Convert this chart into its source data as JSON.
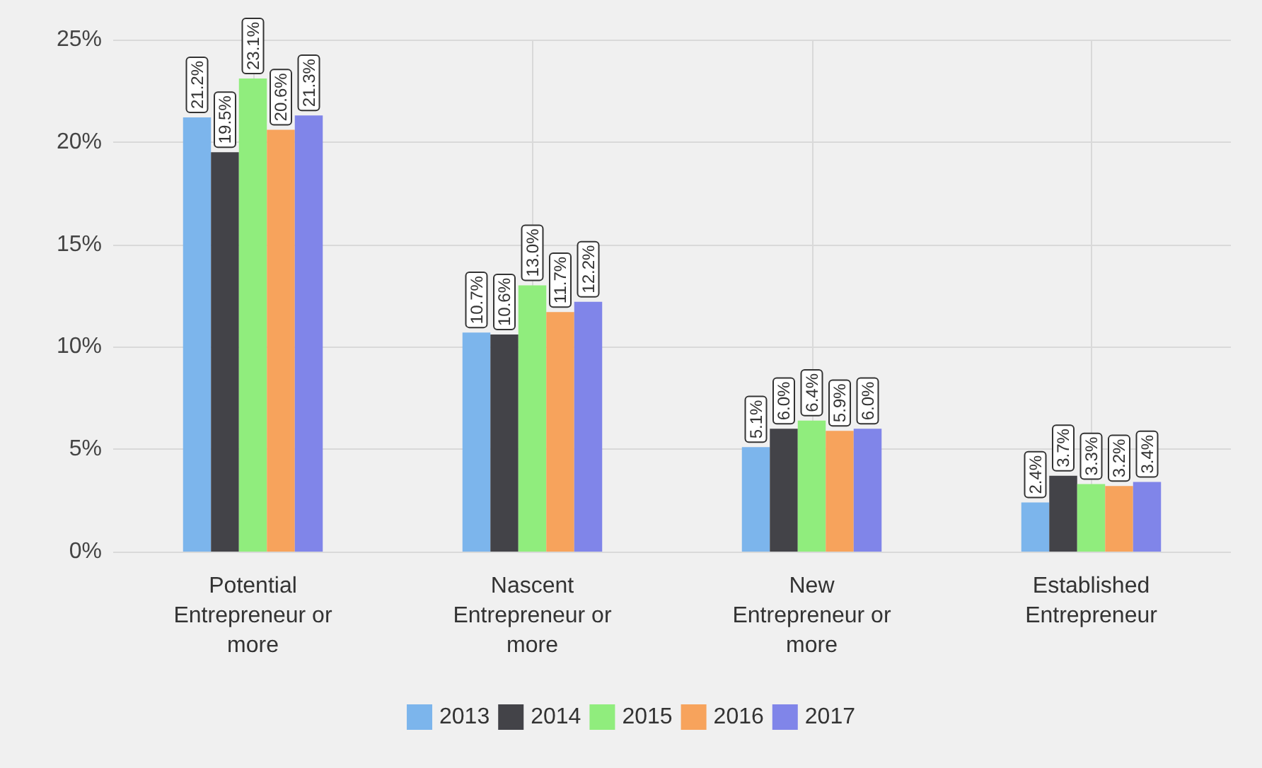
{
  "chart_data": {
    "type": "bar",
    "categories": [
      "Potential\nEntrepreneur or\nmore",
      "Nascent\nEntrepreneur or\nmore",
      "New\nEntrepreneur or\nmore",
      "Established\nEntrepreneur"
    ],
    "series": [
      {
        "name": "2013",
        "color": "#7cb5ec",
        "values": [
          21.2,
          10.7,
          5.1,
          2.4
        ],
        "value_labels": [
          "21.2%",
          "10.7%",
          "5.1%",
          "2.4%"
        ]
      },
      {
        "name": "2014",
        "color": "#434348",
        "values": [
          19.5,
          10.6,
          6.0,
          3.7
        ],
        "value_labels": [
          "19.5%",
          "10.6%",
          "6.0%",
          "3.7%"
        ]
      },
      {
        "name": "2015",
        "color": "#90ed7d",
        "values": [
          23.1,
          13.0,
          6.4,
          3.3
        ],
        "value_labels": [
          "23.1%",
          "13.0%",
          "6.4%",
          "3.3%"
        ]
      },
      {
        "name": "2016",
        "color": "#f7a35c",
        "values": [
          20.6,
          11.7,
          5.9,
          3.2
        ],
        "value_labels": [
          "20.6%",
          "11.7%",
          "5.9%",
          "3.2%"
        ]
      },
      {
        "name": "2017",
        "color": "#8085e9",
        "values": [
          21.3,
          12.2,
          6.0,
          3.4
        ],
        "value_labels": [
          "21.3%",
          "12.2%",
          "6.0%",
          "3.4%"
        ]
      }
    ],
    "ylim": [
      0,
      25
    ],
    "yticks": [
      {
        "value": 0,
        "label": "0%"
      },
      {
        "value": 5,
        "label": "5%"
      },
      {
        "value": 10,
        "label": "10%"
      },
      {
        "value": 15,
        "label": "15%"
      },
      {
        "value": 20,
        "label": "20%"
      },
      {
        "value": 25,
        "label": "25%"
      }
    ],
    "grid": true,
    "legend": "bottom"
  }
}
